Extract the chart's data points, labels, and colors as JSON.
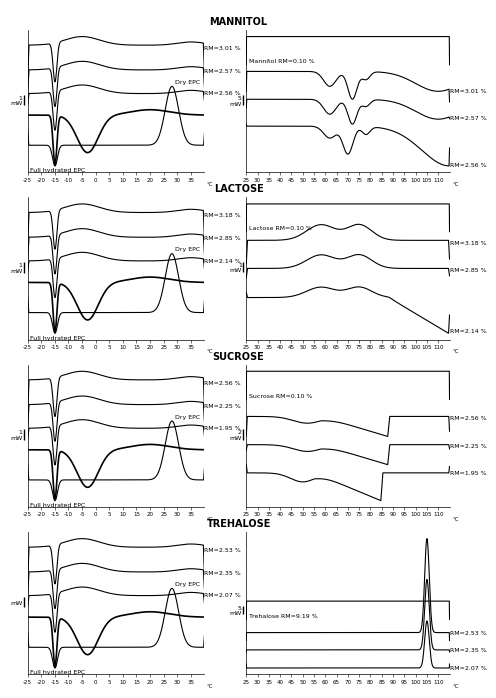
{
  "sections": [
    "MANNITOL",
    "LACTOSE",
    "SUCROSE",
    "TREHALOSE"
  ],
  "left_rm_labels": [
    [
      "RM=3.01 %",
      "RM=2.57 %",
      "RM=2.56 %"
    ],
    [
      "RM=3.18 %",
      "RM=2.85 %",
      "RM=2.14 %"
    ],
    [
      "RM=2.56 %",
      "RM=2.25 %",
      "RM=1.95 %"
    ],
    [
      "RM=2.53 %",
      "RM=2.35 %",
      "RM=2.07 %"
    ]
  ],
  "right_titles": [
    "Mannitol RM=0.10 %",
    "Lactose RM=0.10 %",
    "Sucrose RM=0.10 %",
    "Trehalose RM=9.19 %"
  ],
  "right_rm_labels": [
    [
      "RM=3.01 %",
      "RM=2.57 %",
      "RM=2.56 %"
    ],
    [
      "RM=3.18 %",
      "RM=2.85 %",
      "RM=2.14 %"
    ],
    [
      "RM=2.56 %",
      "RM=2.25 %",
      "RM=1.95 %"
    ],
    [
      "RM=2.53 %",
      "RM=2.35 %",
      "RM=2.07 %"
    ]
  ],
  "left_ylabels": [
    "1\nmW",
    "1\nmW",
    "1\nmW",
    "mW"
  ],
  "right_ylabels": [
    "5\nmW",
    "1\nmW",
    "2\nmW",
    "5\nmW"
  ],
  "left_xlim": [
    -25,
    40
  ],
  "right_xlim": [
    25,
    115
  ],
  "left_xticks": [
    -25,
    -20,
    -15,
    -10,
    -5,
    0,
    5,
    10,
    15,
    20,
    25,
    30,
    35
  ],
  "right_xticks": [
    25,
    30,
    35,
    40,
    45,
    50,
    55,
    60,
    65,
    70,
    75,
    80,
    85,
    90,
    95,
    100,
    105,
    110
  ],
  "lw": 0.8,
  "label_fs": 4.5,
  "tick_fs": 4.0,
  "title_fs": 7.0
}
